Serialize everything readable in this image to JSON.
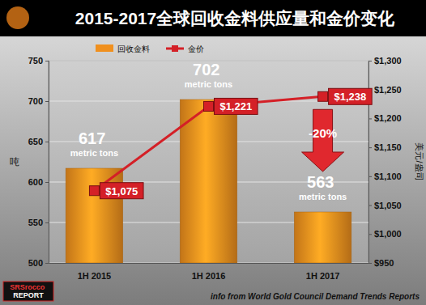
{
  "chart_data": {
    "type": "bar",
    "title": "2015-2017全球回收金料供应量和金价变化",
    "categories": [
      "1H 2015",
      "1H 2016",
      "1H 2017"
    ],
    "series": [
      {
        "name": "回收金料",
        "type": "bar",
        "color": "#f0901e",
        "values": [
          617,
          702,
          563
        ],
        "value_labels": [
          "617 metric tons",
          "702 metric tons",
          "563 metric tons"
        ],
        "data_labels": true
      },
      {
        "name": "金价",
        "type": "line",
        "axis": "y2",
        "color": "#d42027",
        "marker": "square",
        "values": [
          1075,
          1221,
          1238
        ],
        "value_labels": [
          "$1,075",
          "$1,221",
          "$1,238"
        ],
        "data_labels": true
      }
    ],
    "ylabel": "吨",
    "y2label": "美元/盎司",
    "ylim": [
      500,
      750
    ],
    "yticks": [
      500,
      550,
      600,
      650,
      700,
      750
    ],
    "y2lim": [
      950,
      1300
    ],
    "y2ticks": [
      {
        "value": 950,
        "label": "$950"
      },
      {
        "value": 1000,
        "label": "$1,000"
      },
      {
        "value": 1050,
        "label": "$1,050"
      },
      {
        "value": 1100,
        "label": "$1,100"
      },
      {
        "value": 1150,
        "label": "$1,150"
      },
      {
        "value": 1200,
        "label": "$1,200"
      },
      {
        "value": 1250,
        "label": "$1,250"
      },
      {
        "value": 1300,
        "label": "$1,300"
      }
    ],
    "grid": true,
    "legend": "top-left",
    "annotations": [
      {
        "text": "-20%",
        "category": "1H 2017"
      }
    ],
    "source": "info from World Gold Council Demand Trends Reports",
    "logo": "SRSrocco REPORT"
  }
}
